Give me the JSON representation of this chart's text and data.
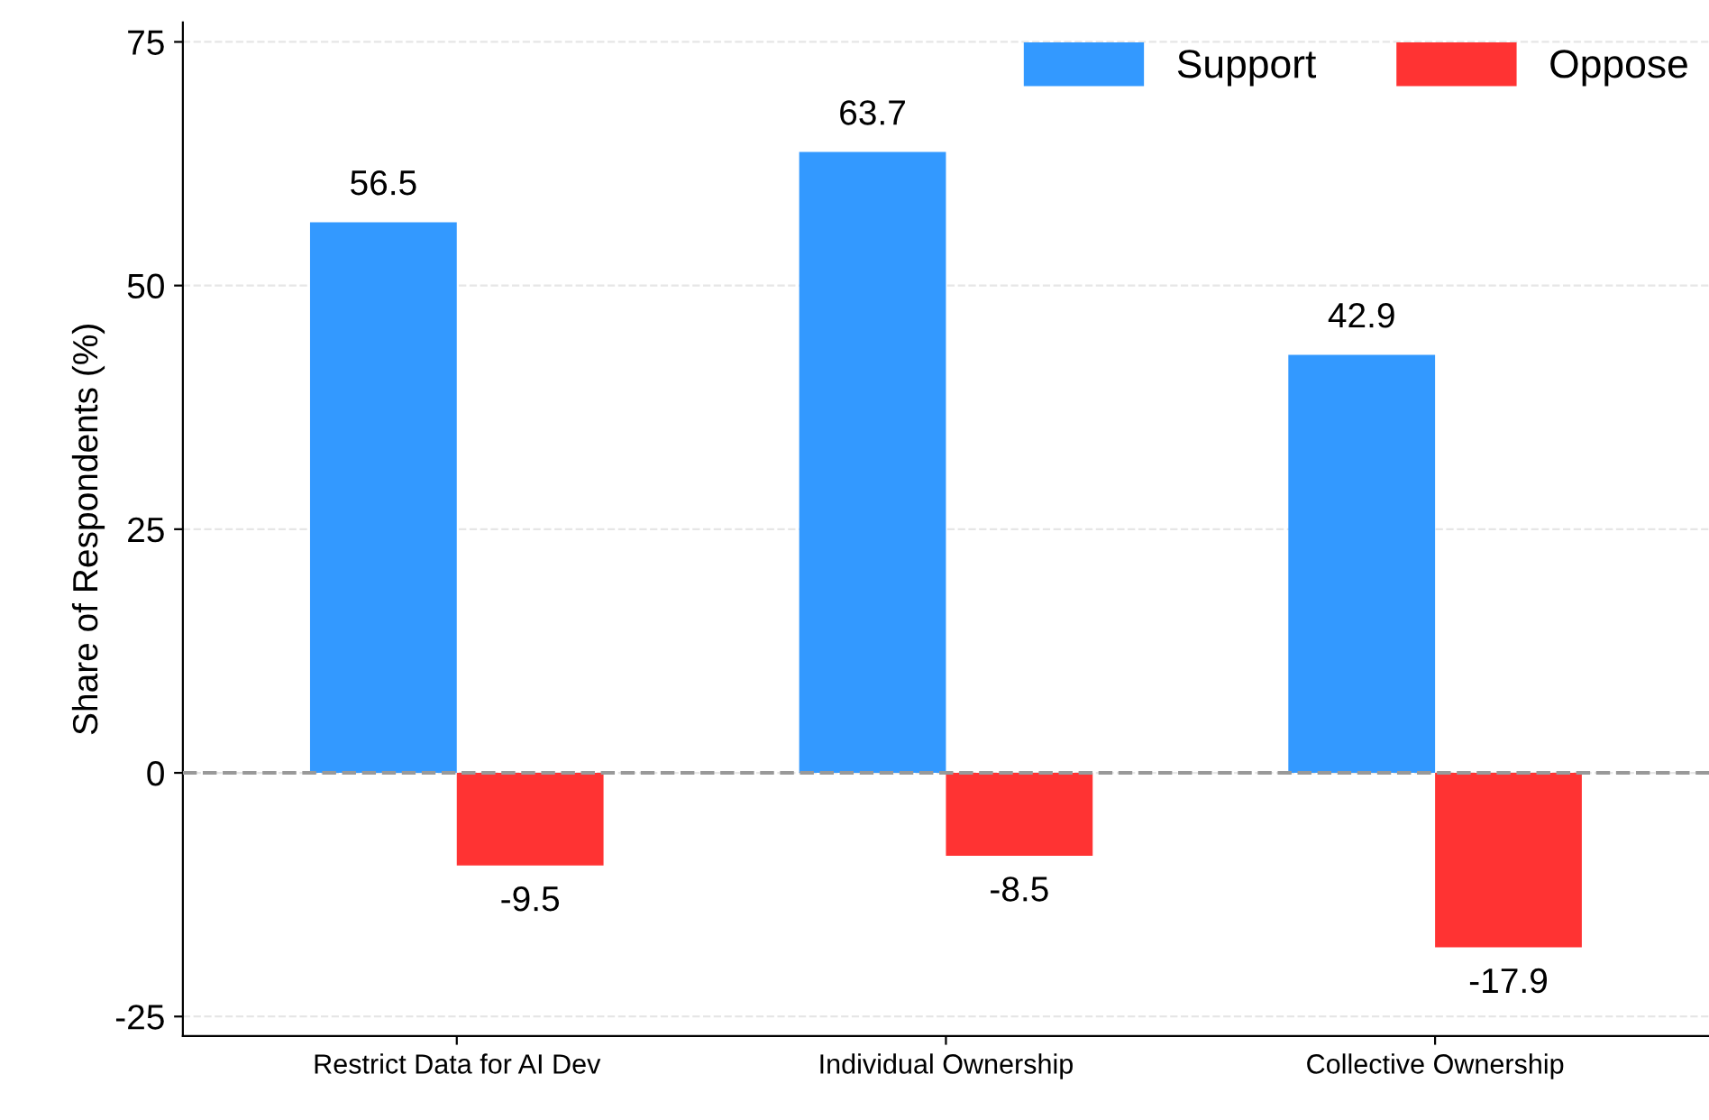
{
  "chart_data": {
    "type": "bar",
    "ylabel": "Share of Respondents (%)",
    "categories": [
      "Restrict Data for AI Dev",
      "Individual Ownership",
      "Collective Ownership"
    ],
    "series": [
      {
        "name": "Support",
        "color": "#3399ff",
        "values": [
          56.5,
          63.7,
          42.9
        ]
      },
      {
        "name": "Oppose",
        "color": "#ff3333",
        "values": [
          -9.5,
          -8.5,
          -17.9
        ]
      }
    ],
    "ylim": [
      -27,
      77
    ],
    "yticks": [
      -25,
      0,
      25,
      50,
      75
    ],
    "grid": "y",
    "legend": "top right",
    "data_labels": true,
    "ref_lines": [
      {
        "axis": "y",
        "value": 0,
        "color": "#999999",
        "line_style": "dashed"
      }
    ]
  }
}
